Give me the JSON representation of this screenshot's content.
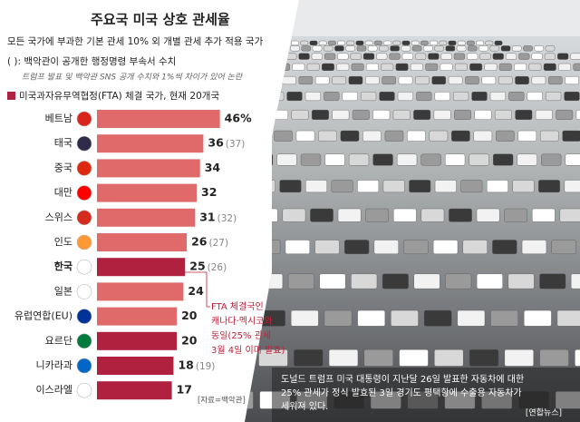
{
  "chart_data": {
    "type": "bar",
    "title": "주요국 미국 상호 관세율",
    "subtitle": "모든 국가에 부과한 기본 관세 10% 외 개별 관세 추가 적용 국가",
    "note": "( ): 백악관이 공개한 행정명령 부속서 수치",
    "note_sub": "트럼프 발표 및 백악관 SNS 공개 수치와 1%씩 차이가 있어 논란",
    "legend_label": "미국과자유무역협정(FTA) 체결 국가, 현재 20개국",
    "categories": [
      "베트남",
      "태국",
      "중국",
      "대만",
      "스위스",
      "인도",
      "한국",
      "일본",
      "유럽연합(EU)",
      "요르단",
      "니카라과",
      "이스라엘"
    ],
    "values": [
      46,
      36,
      34,
      32,
      31,
      26,
      25,
      24,
      20,
      20,
      18,
      17
    ],
    "value_labels": [
      "46%",
      null,
      null,
      null,
      null,
      null,
      null,
      null,
      null,
      null,
      null,
      null
    ],
    "annex_values": [
      null,
      37,
      null,
      null,
      32,
      27,
      26,
      null,
      null,
      null,
      19,
      null
    ],
    "annex_value_labels": [
      null,
      "(37)",
      null,
      null,
      "(32)",
      "(27)",
      "(26)",
      null,
      null,
      null,
      "(19)",
      null
    ],
    "colors": [
      "#e06a6a",
      "#e06a6a",
      "#e06a6a",
      "#e06a6a",
      "#e06a6a",
      "#e06a6a",
      "#b0203f",
      "#e06a6a",
      "#e06a6a",
      "#b0203f",
      "#b0203f",
      "#b0203f"
    ],
    "legend_color": "#b0203f",
    "annotation": [
      "FTA 체결국인",
      "캐나다·멕시코와",
      "동일(25% 관세",
      "3월 4일 이미 발효)"
    ],
    "source": "[자료=백악관]"
  },
  "photo": {
    "caption": [
      "도널드 트럼프 미국 대통령이 지난달 26일 발표한 자동차에 대한",
      "25% 관세가 정식 발효된 3일 경기도 평택항에 수출용 자동차가",
      "세워져 있다."
    ],
    "credit": "[연합뉴스]"
  }
}
